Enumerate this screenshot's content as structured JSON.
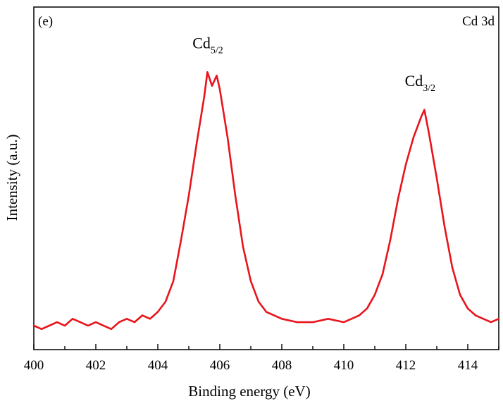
{
  "chart_data": {
    "type": "line",
    "panel_label": "(e)",
    "title": "Cd 3d",
    "xlabel": "Binding energy (eV)",
    "ylabel": "Intensity (a.u.)",
    "xlim": [
      400,
      415
    ],
    "ylim": [
      0,
      1
    ],
    "x_ticks": [
      "400",
      "402",
      "404",
      "406",
      "408",
      "410",
      "412",
      "414"
    ],
    "y_ticks_labeled": false,
    "grid": false,
    "line_color": "#e8141c",
    "series": [
      {
        "x": [
          400.0,
          400.25,
          400.5,
          400.75,
          401.0,
          401.25,
          401.5,
          401.75,
          402.0,
          402.25,
          402.5,
          402.75,
          403.0,
          403.25,
          403.5,
          403.75,
          404.0,
          404.25,
          404.5,
          404.75,
          405.0,
          405.25,
          405.5,
          405.6,
          405.75,
          405.9,
          406.0,
          406.25,
          406.5,
          406.75,
          407.0,
          407.25,
          407.5,
          407.75,
          408.0,
          408.5,
          409.0,
          409.5,
          410.0,
          410.25,
          410.5,
          410.75,
          411.0,
          411.25,
          411.5,
          411.75,
          412.0,
          412.25,
          412.5,
          412.6,
          412.75,
          413.0,
          413.25,
          413.5,
          413.75,
          414.0,
          414.25,
          414.5,
          414.75,
          415.0
        ],
        "y": [
          0.07,
          0.06,
          0.07,
          0.08,
          0.07,
          0.09,
          0.08,
          0.07,
          0.08,
          0.07,
          0.06,
          0.08,
          0.09,
          0.08,
          0.1,
          0.09,
          0.11,
          0.14,
          0.2,
          0.32,
          0.45,
          0.6,
          0.74,
          0.81,
          0.77,
          0.8,
          0.76,
          0.62,
          0.45,
          0.3,
          0.2,
          0.14,
          0.11,
          0.1,
          0.09,
          0.08,
          0.08,
          0.09,
          0.08,
          0.09,
          0.1,
          0.12,
          0.16,
          0.22,
          0.32,
          0.44,
          0.54,
          0.62,
          0.68,
          0.7,
          0.63,
          0.5,
          0.36,
          0.24,
          0.16,
          0.12,
          0.1,
          0.09,
          0.08,
          0.09
        ]
      }
    ],
    "annotations": [
      {
        "main": "Cd",
        "sub": "5/2",
        "x": 405.75,
        "y": 0.88
      },
      {
        "main": "Cd",
        "sub": "3/2",
        "x": 412.6,
        "y": 0.77
      }
    ]
  }
}
